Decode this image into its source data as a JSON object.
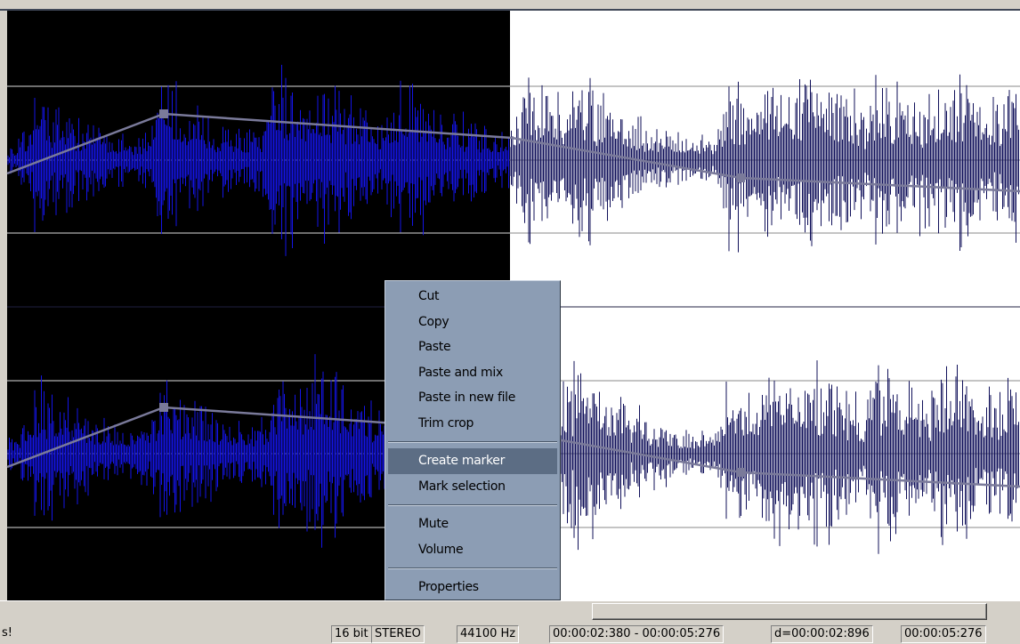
{
  "menu": {
    "groups": [
      [
        "Cut",
        "Copy",
        "Paste",
        "Paste and mix",
        "Paste in new file",
        "Trim crop"
      ],
      [
        "Create marker",
        "Mark selection"
      ],
      [
        "Mute",
        "Volume"
      ],
      [
        "Properties"
      ]
    ]
  },
  "status": {
    "message": "s!",
    "fields": [
      "16 bit",
      "STEREO",
      "44100 Hz",
      "00:00:02:380 - 00:00:05:276",
      "d=00:00:02:896",
      "00:00:05:276"
    ]
  }
}
